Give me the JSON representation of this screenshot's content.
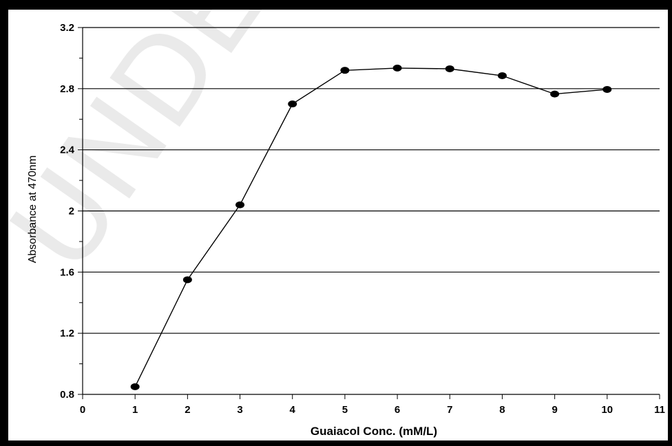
{
  "watermark": "UNDER",
  "chart_data": {
    "type": "line",
    "title": "",
    "xlabel": "Guaiacol Conc. (mM/L)",
    "ylabel": "Absorbance at 470nm",
    "xlim": [
      0,
      11
    ],
    "ylim": [
      0.8,
      3.2
    ],
    "x_ticks": [
      0,
      1,
      2,
      3,
      4,
      5,
      6,
      7,
      8,
      9,
      10,
      11
    ],
    "y_ticks": [
      0.8,
      1.2,
      1.6,
      2,
      2.4,
      2.8,
      3.2
    ],
    "y_tick_labels": [
      "0.8",
      "1.2",
      "1.6",
      "2",
      "2.4",
      "2.8",
      "3.2"
    ],
    "grid": "horizontal major",
    "legend": "none",
    "series": [
      {
        "x": [
          1,
          2,
          3,
          4,
          5,
          6,
          7,
          8,
          9,
          10
        ],
        "y": [
          0.85,
          1.55,
          2.04,
          2.7,
          2.92,
          2.935,
          2.93,
          2.885,
          2.765,
          2.795
        ]
      }
    ],
    "line_color": "#000000",
    "marker_color": "#000000",
    "marker": "circle"
  }
}
